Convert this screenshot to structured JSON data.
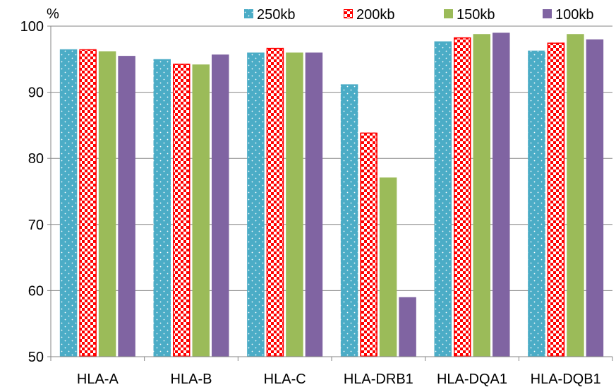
{
  "chart_data": {
    "type": "bar",
    "title": "",
    "xlabel": "",
    "ylabel": "%",
    "ylim": [
      50,
      100
    ],
    "yticks": [
      50,
      60,
      70,
      80,
      90,
      100
    ],
    "grid": true,
    "legend_position": "top",
    "categories": [
      "HLA-A",
      "HLA-B",
      "HLA-C",
      "HLA-DRB1",
      "HLA-DQA1",
      "HLA-DQB1"
    ],
    "series": [
      {
        "name": "250kb",
        "color": "#4bacc6",
        "pattern": "dots",
        "values": [
          96.5,
          95.0,
          96.0,
          91.2,
          97.7,
          96.3
        ]
      },
      {
        "name": "200kb",
        "color": "#ff0000",
        "pattern": "checker",
        "values": [
          96.5,
          94.3,
          96.7,
          83.9,
          98.3,
          97.5
        ]
      },
      {
        "name": "150kb",
        "color": "#9bbb59",
        "pattern": "solid",
        "values": [
          96.2,
          94.2,
          96.0,
          77.1,
          98.8,
          98.8
        ]
      },
      {
        "name": "100kb",
        "color": "#8064a2",
        "pattern": "solid",
        "values": [
          95.5,
          95.7,
          96.0,
          59.0,
          99.0,
          98.0
        ]
      }
    ]
  }
}
